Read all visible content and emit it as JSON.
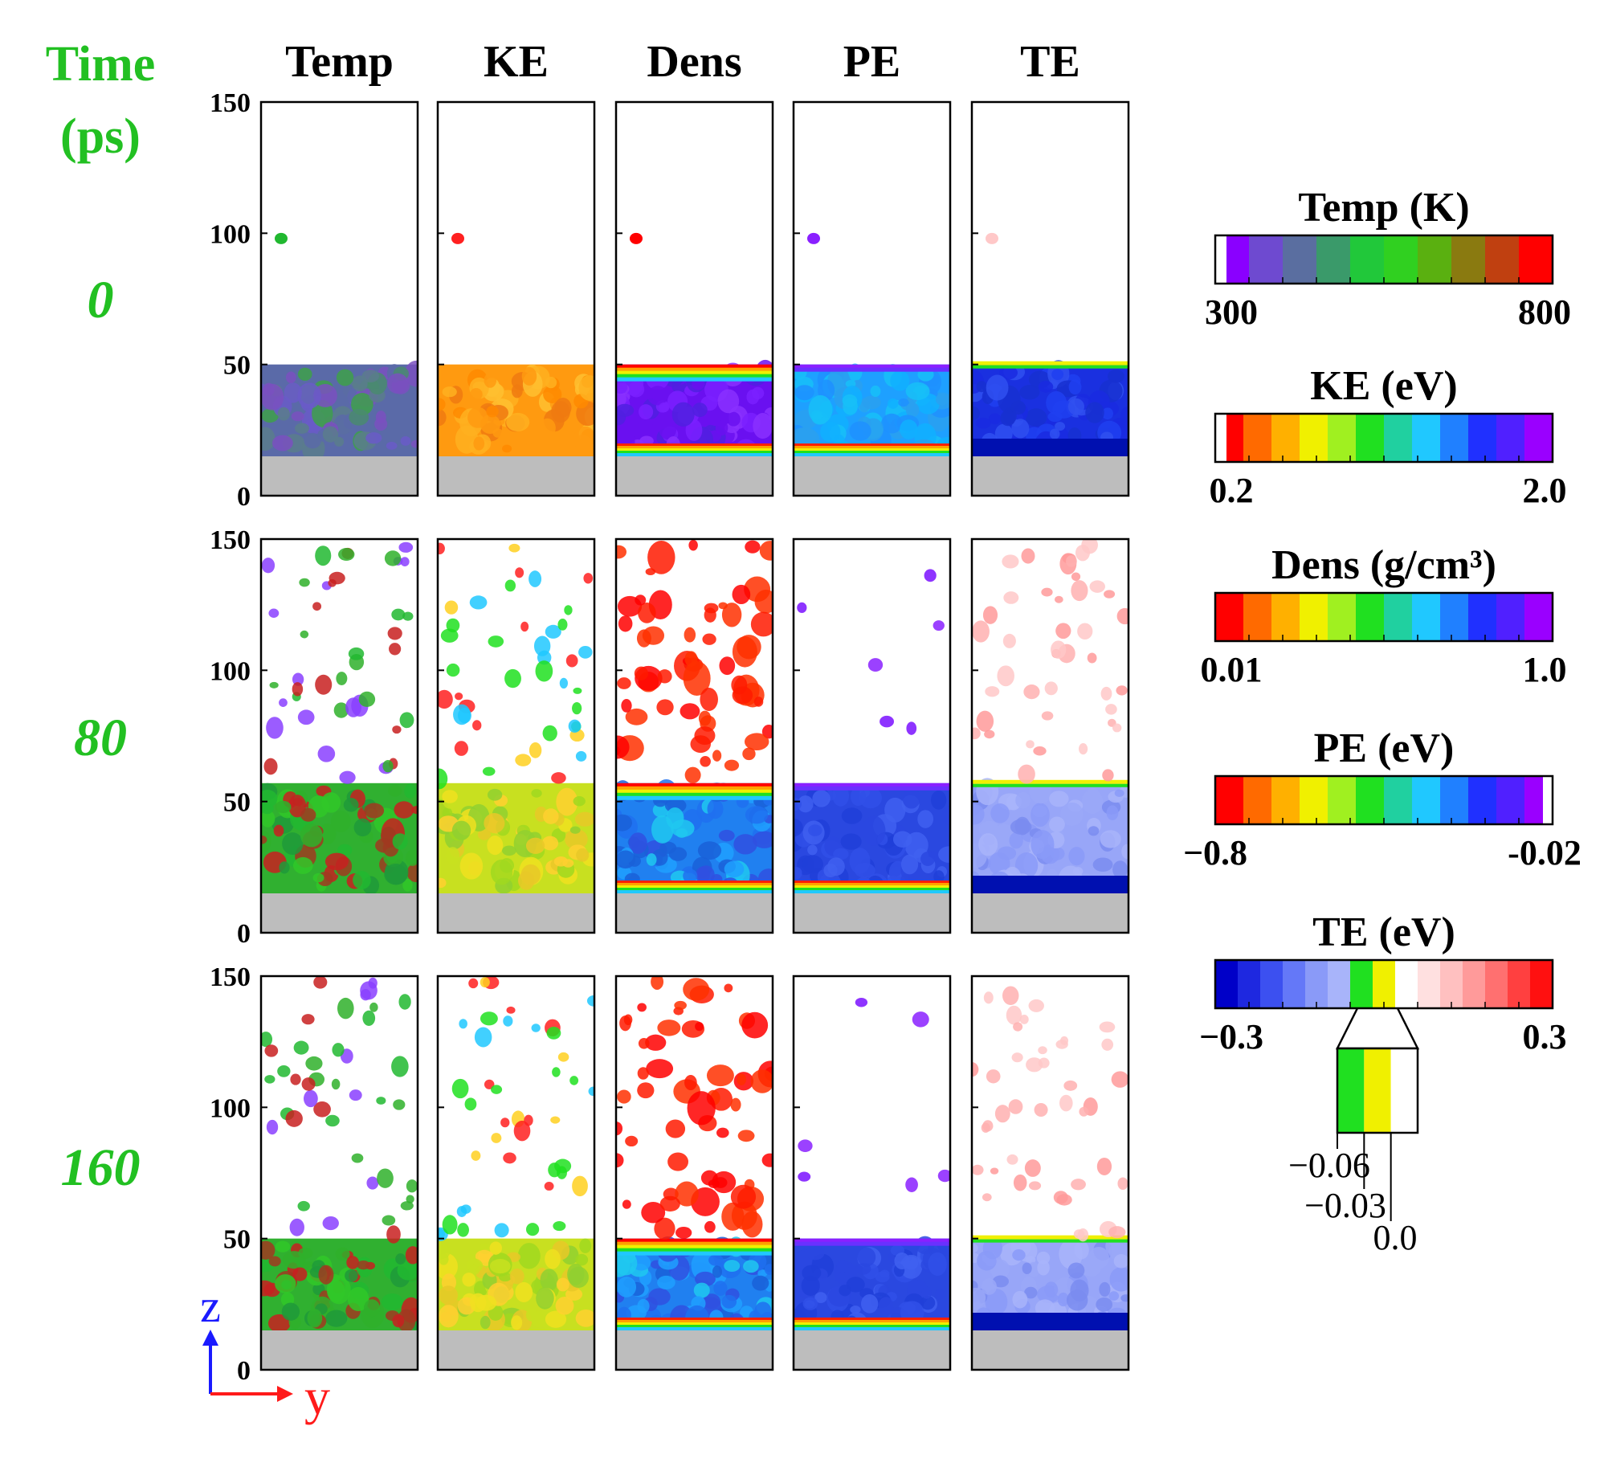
{
  "time_header": [
    "Time",
    "(ps)"
  ],
  "column_headers": [
    "Temp",
    "KE",
    "Dens",
    "PE",
    "TE"
  ],
  "time_labels": [
    "0",
    "80",
    "160"
  ],
  "axis": {
    "ticks": [
      "150",
      "100",
      "50",
      "0"
    ],
    "z_label": "z",
    "y_label": "y"
  },
  "colorbars": [
    {
      "title": "Temp (K)",
      "min_label": "300",
      "max_label": "800",
      "colors": [
        "#8a00ff",
        "#6e4ad0",
        "#5a6ea0",
        "#3a9a6a",
        "#21c83a",
        "#30d020",
        "#5ab010",
        "#8a7a10",
        "#c04010",
        "#ff0000"
      ]
    },
    {
      "title": "KE (eV)",
      "min_label": "0.2",
      "max_label": "2.0",
      "colors": [
        "#ff0000",
        "#ff6a00",
        "#ffb000",
        "#f0f000",
        "#a0f020",
        "#20e020",
        "#20d0a0",
        "#20c8ff",
        "#2080ff",
        "#2030ff",
        "#5020ff",
        "#9a00ff"
      ]
    },
    {
      "title": "Dens (g/cm³)",
      "min_label": "0.01",
      "max_label": "1.0",
      "colors": [
        "#ff0000",
        "#ff6a00",
        "#ffb000",
        "#f0f000",
        "#a0f020",
        "#20e020",
        "#20d0a0",
        "#20c8ff",
        "#2080ff",
        "#2030ff",
        "#5020ff",
        "#9a00ff"
      ]
    },
    {
      "title": "PE (eV)",
      "min_label": "−0.8",
      "max_label": "-0.02",
      "colors": [
        "#ff0000",
        "#ff6a00",
        "#ffb000",
        "#f0f000",
        "#a0f020",
        "#20e020",
        "#20d0a0",
        "#20c8ff",
        "#2080ff",
        "#2030ff",
        "#5020ff",
        "#9a00ff"
      ]
    },
    {
      "title": "TE (eV)",
      "min_label": "−0.3",
      "max_label": "0.3",
      "colors": [
        "#0000c8",
        "#1e28e0",
        "#3c50f0",
        "#6478f8",
        "#8a9af8",
        "#a8b4fa",
        "#20e020",
        "#f0f000",
        "#ffffff",
        "#ffe0e0",
        "#ffc0c0",
        "#ff9a9a",
        "#ff7070",
        "#ff4040",
        "#ff1010"
      ]
    }
  ],
  "te_inset": {
    "colors": [
      "#20e020",
      "#f0f000",
      "#ffffff"
    ],
    "labels": [
      "−0.06",
      "−0.03",
      "0.0"
    ]
  },
  "chart_data": {
    "type": "heatmap",
    "title": "",
    "xlabel": "y",
    "ylabel": "z",
    "ylim": [
      0,
      150
    ],
    "rows_time_ps": [
      0,
      80,
      160
    ],
    "columns": [
      "Temp",
      "KE",
      "Dens",
      "PE",
      "TE"
    ],
    "yticks": [
      0,
      50,
      100,
      150
    ],
    "colorbars": [
      {
        "quantity": "Temp",
        "unit": "K",
        "range": [
          300,
          800
        ]
      },
      {
        "quantity": "KE",
        "unit": "eV",
        "range": [
          0.2,
          2.0
        ]
      },
      {
        "quantity": "Dens",
        "unit": "g/cm3",
        "range": [
          0.01,
          1.0
        ]
      },
      {
        "quantity": "PE",
        "unit": "eV",
        "range": [
          -0.8,
          -0.02
        ]
      },
      {
        "quantity": "TE",
        "unit": "eV",
        "range": [
          -0.3,
          0.3
        ],
        "inset_ticks": [
          -0.06,
          -0.03,
          0.0
        ]
      }
    ],
    "film_top_z": [
      50,
      57,
      50
    ],
    "substrate_top_z": 15
  }
}
